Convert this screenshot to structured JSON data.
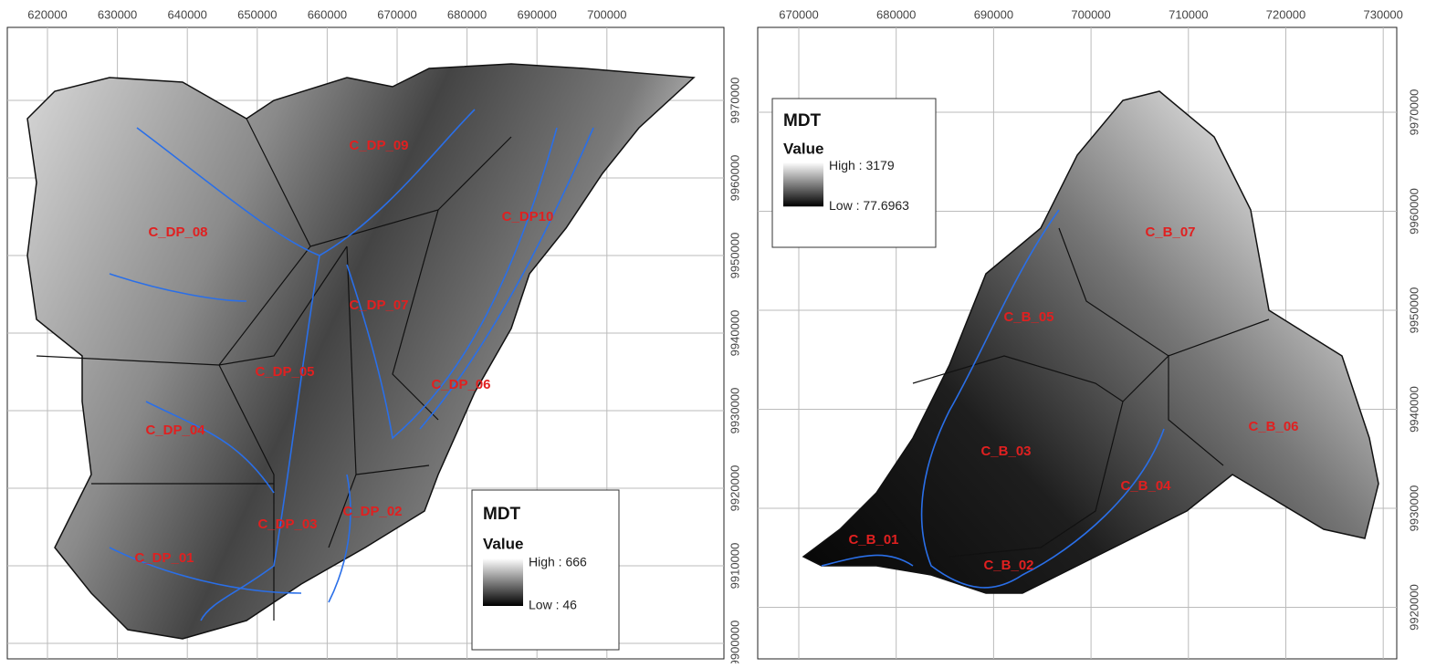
{
  "maps": [
    {
      "x_ticks": [
        "620000",
        "630000",
        "640000",
        "650000",
        "660000",
        "670000",
        "680000",
        "690000",
        "700000"
      ],
      "y_ticks": [
        "9970000",
        "9960000",
        "9950000",
        "9940000",
        "9930000",
        "9920000",
        "9910000",
        "9900000"
      ],
      "labels": [
        "C_DP_09",
        "C_DP10",
        "C_DP_08",
        "C_DP_07",
        "C_DP_05",
        "C_DP_06",
        "C_DP_04",
        "C_DP_03",
        "C_DP_02",
        "C_DP_01"
      ],
      "legend": {
        "title": "MDT",
        "subtitle": "Value",
        "high": "High : 666",
        "low": "Low : 46"
      }
    },
    {
      "x_ticks": [
        "670000",
        "680000",
        "690000",
        "700000",
        "710000",
        "720000",
        "730000"
      ],
      "y_ticks": [
        "9970000",
        "9960000",
        "9950000",
        "9940000",
        "9930000",
        "9920000"
      ],
      "labels": [
        "C_B_07",
        "C_B_05",
        "C_B_06",
        "C_B_03",
        "C_B_04",
        "C_B_01",
        "C_B_02"
      ],
      "legend": {
        "title": "MDT",
        "subtitle": "Value",
        "high": "High : 3179",
        "low": "Low : 77.6963"
      }
    }
  ]
}
